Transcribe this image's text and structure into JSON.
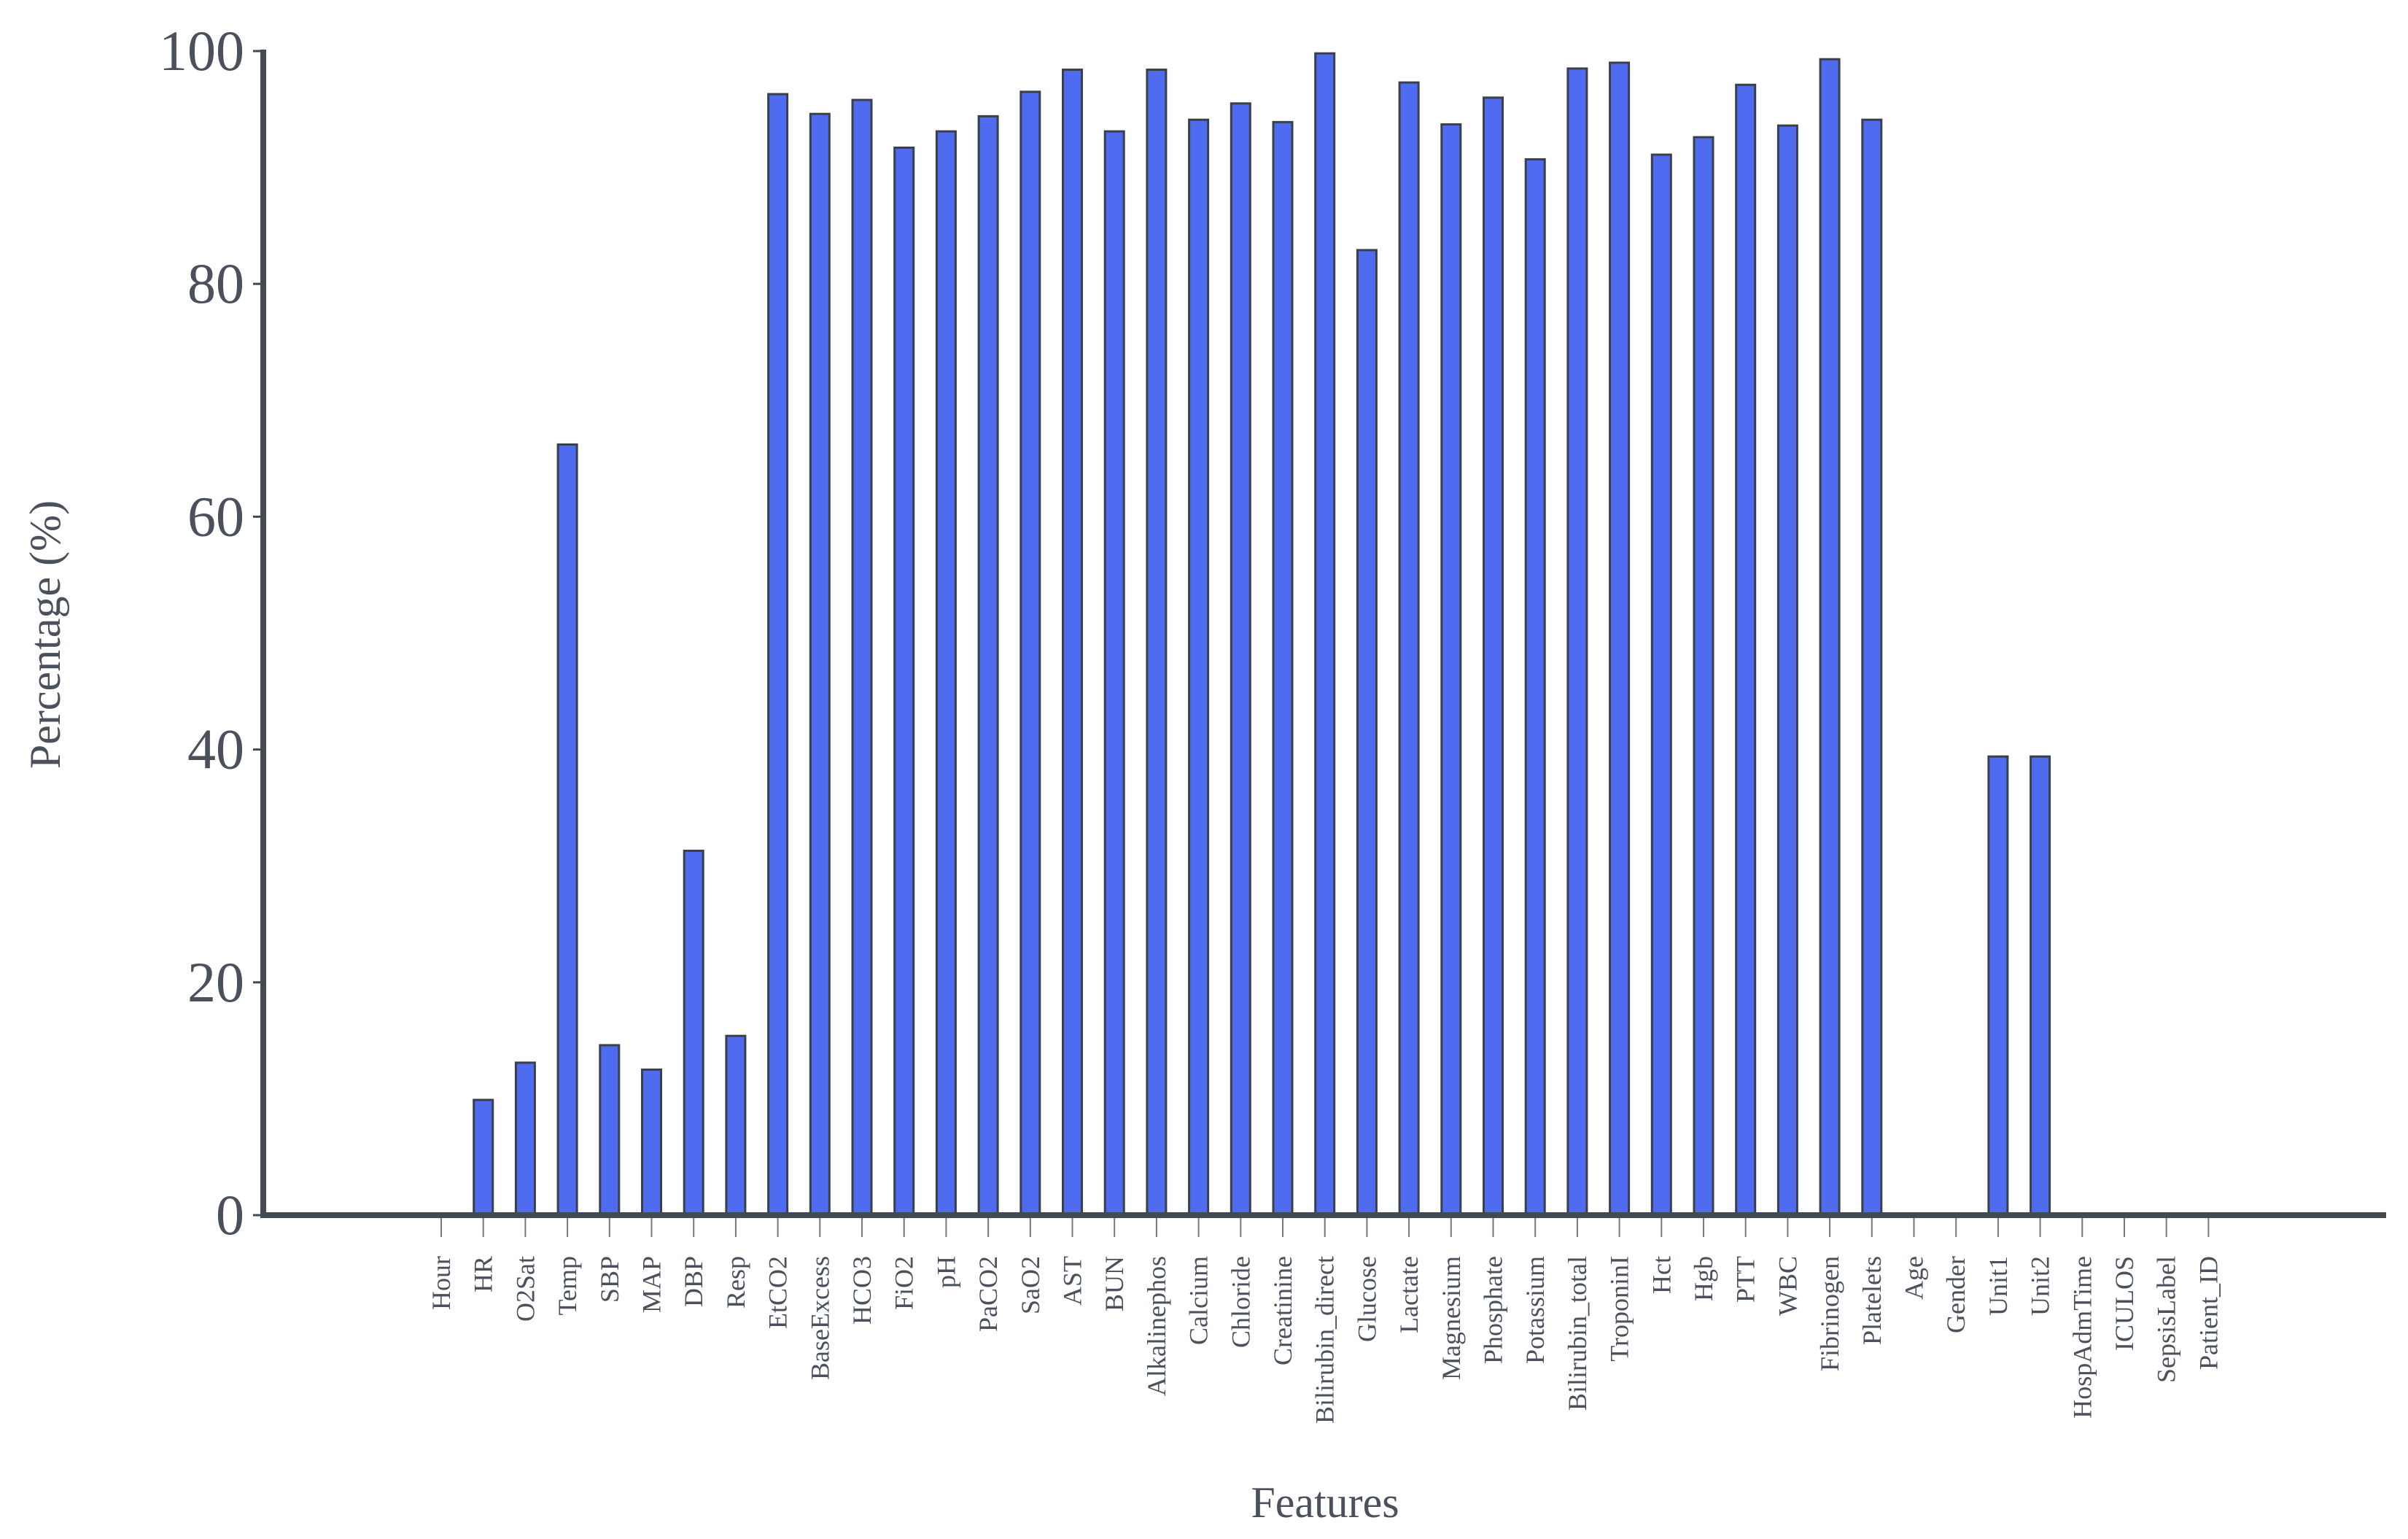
{
  "chart_data": {
    "type": "bar",
    "xlabel": "Features",
    "ylabel": "Percentage (%)",
    "categories": [
      "Hour",
      "HR",
      "O2Sat",
      "Temp",
      "SBP",
      "MAP",
      "DBP",
      "Resp",
      "EtCO2",
      "BaseExcess",
      "HCO3",
      "FiO2",
      "pH",
      "PaCO2",
      "SaO2",
      "AST",
      "BUN",
      "Alkalinephos",
      "Calcium",
      "Chloride",
      "Creatinine",
      "Bilirubin_direct",
      "Glucose",
      "Lactate",
      "Magnesium",
      "Phosphate",
      "Potassium",
      "Bilirubin_total",
      "TroponinI",
      "Hct",
      "Hgb",
      "PTT",
      "WBC",
      "Fibrinogen",
      "Platelets",
      "Age",
      "Gender",
      "Unit1",
      "Unit2",
      "HospAdmTime",
      "ICULOS",
      "SepsisLabel",
      "Patient_ID"
    ],
    "values": [
      0,
      9.9,
      13.1,
      66.2,
      14.6,
      12.5,
      31.3,
      15.4,
      96.3,
      94.6,
      95.8,
      91.7,
      93.1,
      94.4,
      96.5,
      98.4,
      93.1,
      98.4,
      94.1,
      95.5,
      93.9,
      99.8,
      82.9,
      97.3,
      93.7,
      96.0,
      90.7,
      98.5,
      99.0,
      91.1,
      92.6,
      97.1,
      93.6,
      99.3,
      94.1,
      0,
      0,
      39.4,
      39.4,
      0,
      0,
      0,
      0
    ],
    "color": "#4f6cf0",
    "ylim": [
      0,
      100
    ],
    "yticks": [
      0,
      20,
      40,
      60,
      80,
      100
    ],
    "grid": false
  }
}
